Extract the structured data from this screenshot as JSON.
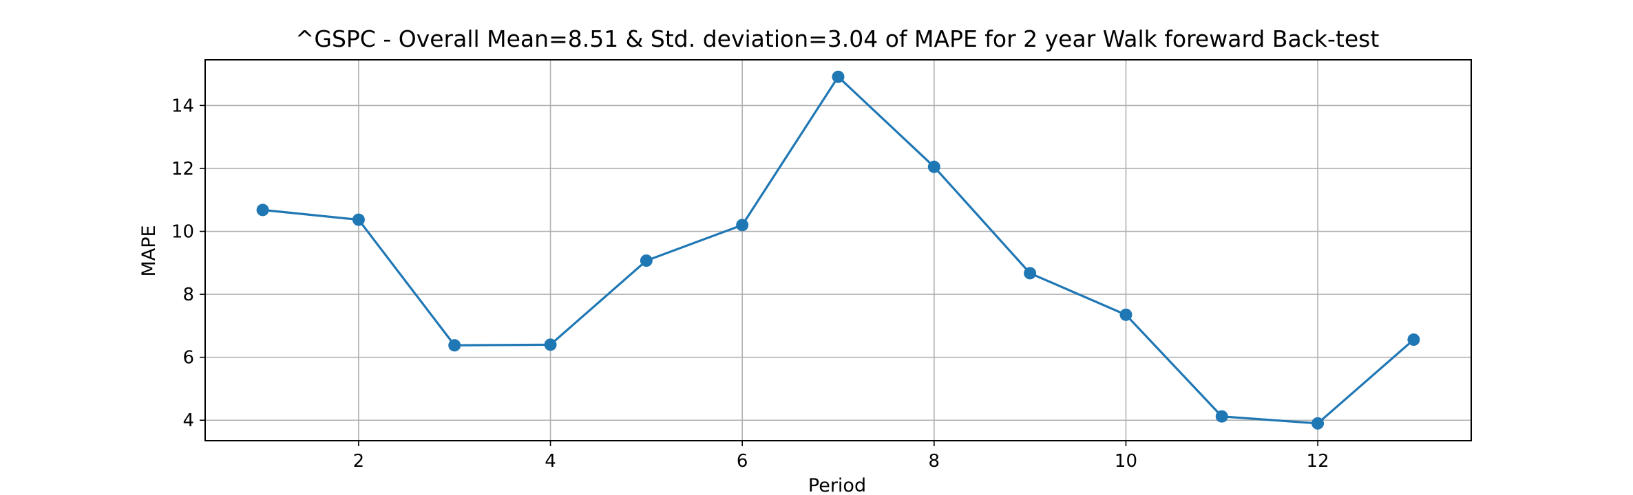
{
  "chart_data": {
    "type": "line",
    "title": "^GSPC - Overall Mean=8.51 & Std. deviation=3.04 of MAPE for 2 year Walk foreward Back-test",
    "xlabel": "Period",
    "ylabel": "MAPE",
    "x": [
      1,
      2,
      3,
      4,
      5,
      6,
      7,
      8,
      9,
      10,
      11,
      12,
      13
    ],
    "series": [
      {
        "values": [
          10.68,
          10.37,
          6.38,
          6.4,
          9.07,
          10.2,
          14.91,
          12.05,
          8.67,
          7.35,
          4.12,
          3.9,
          6.56
        ]
      }
    ],
    "xlim": [
      0.4,
      13.6
    ],
    "ylim": [
      3.35,
      15.45
    ],
    "xticks": [
      2,
      4,
      6,
      8,
      10,
      12
    ],
    "xtick_labels": [
      "2",
      "4",
      "6",
      "8",
      "10",
      "12"
    ],
    "yticks": [
      4,
      6,
      8,
      10,
      12,
      14
    ],
    "ytick_labels": [
      "4",
      "6",
      "8",
      "10",
      "12",
      "14"
    ],
    "grid": true,
    "line_color": "#1f77b4",
    "grid_color": "#b0b0b0",
    "axis_color": "#000000"
  }
}
